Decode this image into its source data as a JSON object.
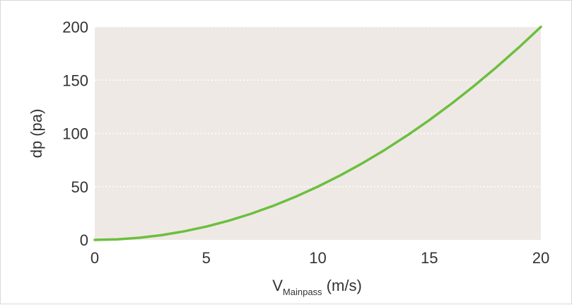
{
  "chart_data": {
    "type": "line",
    "title": "",
    "xlabel_main": "V",
    "xlabel_subscript": "Mainpass",
    "xlabel_unit": " (m/s)",
    "ylabel": "dp (pa)",
    "xlim": [
      0,
      20
    ],
    "ylim": [
      0,
      200
    ],
    "xticks": [
      0,
      5,
      10,
      15,
      20
    ],
    "yticks": [
      0,
      50,
      100,
      150,
      200
    ],
    "grid": "horizontal-dotted",
    "series": [
      {
        "color": "#6cbf3f",
        "x": [
          0,
          1,
          2,
          3,
          4,
          5,
          6,
          7,
          8,
          9,
          10,
          11,
          12,
          13,
          14,
          15,
          16,
          17,
          18,
          19,
          20
        ],
        "y": [
          0,
          0.5,
          2,
          4.5,
          8,
          12.5,
          18,
          24.5,
          32,
          40.5,
          50,
          60.5,
          72,
          84.5,
          98,
          112.5,
          128,
          144.5,
          162,
          180.5,
          200
        ]
      }
    ],
    "plot_background": "#efe9e6"
  }
}
